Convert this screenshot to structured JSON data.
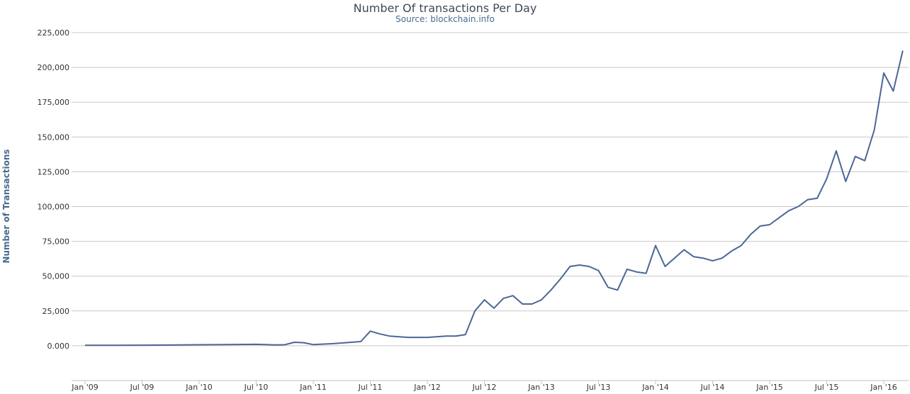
{
  "chart_data": {
    "type": "line",
    "title": "Number Of transactions Per Day",
    "subtitle": "Source: blockchain.info",
    "ylabel": "Number of Transactions",
    "xlabel": "",
    "ylim": [
      -25000,
      225000
    ],
    "xlim": [
      "2009-01",
      "2016-04"
    ],
    "grid": true,
    "legend": "none",
    "y_ticks": [
      "0.000",
      "25,000",
      "50,000",
      "75,000",
      "100,000",
      "125,000",
      "150,000",
      "175,000",
      "200,000",
      "225,000"
    ],
    "y_tick_values": [
      0,
      25000,
      50000,
      75000,
      100000,
      125000,
      150000,
      175000,
      200000,
      225000
    ],
    "x_ticks": [
      "Jan '09",
      "Jul '09",
      "Jan '10",
      "Jul '10",
      "Jan '11",
      "Jul '11",
      "Jan '12",
      "Jul '12",
      "Jan '13",
      "Jul '13",
      "Jan '14",
      "Jul '14",
      "Jan '15",
      "Jul '15",
      "Jan '16"
    ],
    "x_tick_values": [
      "2009-01",
      "2009-07",
      "2010-01",
      "2010-07",
      "2011-01",
      "2011-07",
      "2012-01",
      "2012-07",
      "2013-01",
      "2013-07",
      "2014-01",
      "2014-07",
      "2015-01",
      "2015-07",
      "2016-01"
    ],
    "color": "#4a6796",
    "series": [
      {
        "x": [
          "2009-01",
          "2009-04",
          "2009-07",
          "2009-10",
          "2010-01",
          "2010-04",
          "2010-07",
          "2010-09",
          "2010-10",
          "2010-11",
          "2010-12",
          "2011-01",
          "2011-03",
          "2011-05",
          "2011-06",
          "2011-07",
          "2011-08",
          "2011-09",
          "2011-11",
          "2012-01",
          "2012-03",
          "2012-04",
          "2012-05",
          "2012-06",
          "2012-07",
          "2012-08",
          "2012-09",
          "2012-10",
          "2012-11",
          "2012-12",
          "2013-01",
          "2013-02",
          "2013-03",
          "2013-04",
          "2013-05",
          "2013-06",
          "2013-07",
          "2013-08",
          "2013-09",
          "2013-10",
          "2013-11",
          "2013-12",
          "2014-01",
          "2014-02",
          "2014-03",
          "2014-04",
          "2014-05",
          "2014-06",
          "2014-07",
          "2014-08",
          "2014-09",
          "2014-10",
          "2014-11",
          "2014-12",
          "2015-01",
          "2015-02",
          "2015-03",
          "2015-04",
          "2015-05",
          "2015-06",
          "2015-07",
          "2015-08",
          "2015-09",
          "2015-10",
          "2015-11",
          "2015-12",
          "2016-01",
          "2016-02",
          "2016-03"
        ],
        "y": [
          300,
          300,
          400,
          500,
          700,
          800,
          1000,
          600,
          700,
          2500,
          2200,
          800,
          1500,
          2500,
          3000,
          10500,
          8500,
          7000,
          6000,
          6000,
          7000,
          7000,
          8000,
          25000,
          33000,
          27000,
          34000,
          36000,
          30000,
          30000,
          33000,
          40000,
          48000,
          57000,
          58000,
          57000,
          54000,
          42000,
          40000,
          55000,
          53000,
          52000,
          72000,
          57000,
          63000,
          69000,
          64000,
          63000,
          61000,
          63000,
          68000,
          72000,
          80000,
          86000,
          87000,
          92000,
          97000,
          100000,
          105000,
          106000,
          120000,
          140000,
          118000,
          136000,
          133000,
          155000,
          196000,
          183000,
          212000
        ]
      }
    ]
  }
}
